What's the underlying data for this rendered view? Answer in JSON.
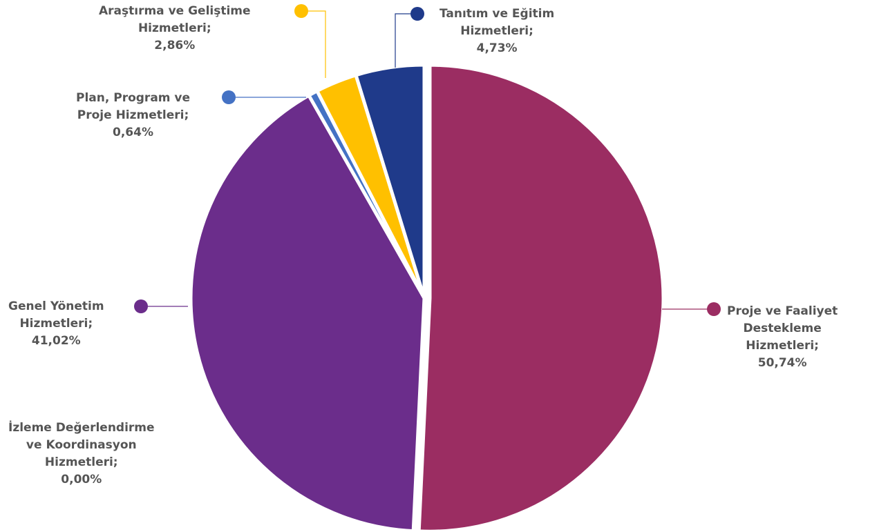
{
  "chart_data": {
    "type": "pie",
    "slices": [
      {
        "label_lines": [
          "Proje ve Faaliyet",
          "Destekleme",
          "Hizmetleri;"
        ],
        "value_text": "50,74%",
        "value": 50.74,
        "color": "#9b2d62"
      },
      {
        "label_lines": [
          "İzleme Değerlendirme",
          "ve Koordinasyon",
          "Hizmetleri;"
        ],
        "value_text": "0,00%",
        "value": 0.0,
        "color": "#7b2b86"
      },
      {
        "label_lines": [
          "Genel Yönetim",
          "Hizmetleri;"
        ],
        "value_text": "41,02%",
        "value": 41.02,
        "color": "#6b2d8b"
      },
      {
        "label_lines": [
          "Plan, Program ve",
          "Proje Hizmetleri;"
        ],
        "value_text": "0,64%",
        "value": 0.64,
        "color": "#4472c4"
      },
      {
        "label_lines": [
          "Araştırma ve Geliştime",
          "Hizmetleri;"
        ],
        "value_text": "2,86%",
        "value": 2.86,
        "color": "#ffc000"
      },
      {
        "label_lines": [
          "Tanıtım ve Eğitim",
          "Hizmetleri;"
        ],
        "value_text": "4,73%",
        "value": 4.73,
        "color": "#1f3a8a"
      }
    ]
  }
}
